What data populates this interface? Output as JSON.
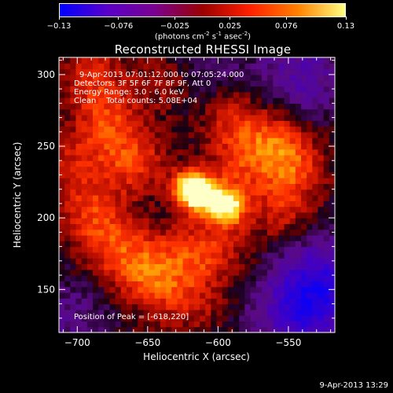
{
  "colorbar": {
    "ticks": [
      "-0.13",
      "-0.076",
      "-0.025",
      "0.025",
      "0.076",
      "0.13"
    ],
    "tick_values": [
      -0.13,
      -0.076,
      -0.025,
      0.025,
      0.076,
      0.13
    ],
    "units_base": "(photons cm",
    "units_exp1": "-2",
    "units_mid": " s",
    "units_exp2": "-1",
    "units_mid2": " asec",
    "units_exp3": "-2",
    "units_end": ")",
    "colors": [
      "#0000ff",
      "#5a00c8",
      "#7a0090",
      "#9a0000",
      "#ff2000",
      "#ff8000",
      "#ffff80"
    ]
  },
  "image_title": "Reconstructed RHESSI Image",
  "annotations": {
    "time_range": "9-Apr-2013 07:01:12.000 to 07:05:24.000",
    "detectors": "Detectors: 3F 5F 6F 7F 8F 9F, Att 0",
    "energy": "Energy Range: 3.0 - 6.0 keV",
    "clean": "Clean    Total counts: 5.08E+04",
    "peak": "Position of Peak = [-618,220]"
  },
  "footer_timestamp": "9-Apr-2013 13:29",
  "chart_data": {
    "type": "heatmap",
    "title": "Reconstructed RHESSI Image",
    "xlabel": "Heliocentric X (arcsec)",
    "ylabel": "Heliocentric Y (arcsec)",
    "xlim": [
      -713,
      -517
    ],
    "ylim": [
      120,
      312
    ],
    "x_ticks": [
      -700,
      -650,
      -600,
      -550
    ],
    "x_tick_labels": [
      "−700",
      "−650",
      "−600",
      "−550"
    ],
    "y_ticks": [
      150,
      200,
      250,
      300
    ],
    "y_tick_labels": [
      "150",
      "200",
      "250",
      "300"
    ],
    "value_range": [
      -0.13,
      0.13
    ],
    "peak": [
      -618,
      220
    ],
    "sources": [
      {
        "x": -620,
        "y": 221,
        "value": 0.13
      },
      {
        "x": -593,
        "y": 209,
        "value": 0.12
      },
      {
        "x": -610,
        "y": 215,
        "value": 0.09
      },
      {
        "x": -660,
        "y": 240,
        "value": 0.055
      },
      {
        "x": -678,
        "y": 268,
        "value": 0.05
      },
      {
        "x": -690,
        "y": 300,
        "value": 0.045
      },
      {
        "x": -635,
        "y": 295,
        "value": 0.035
      },
      {
        "x": -590,
        "y": 270,
        "value": 0.05
      },
      {
        "x": -560,
        "y": 252,
        "value": 0.06
      },
      {
        "x": -545,
        "y": 235,
        "value": 0.045
      },
      {
        "x": -555,
        "y": 205,
        "value": 0.04
      },
      {
        "x": -690,
        "y": 205,
        "value": 0.05
      },
      {
        "x": -675,
        "y": 180,
        "value": 0.045
      },
      {
        "x": -655,
        "y": 165,
        "value": 0.05
      },
      {
        "x": -625,
        "y": 172,
        "value": 0.045
      },
      {
        "x": -600,
        "y": 180,
        "value": 0.04
      },
      {
        "x": -640,
        "y": 148,
        "value": 0.03
      },
      {
        "x": -615,
        "y": 140,
        "value": 0.025
      },
      {
        "x": -585,
        "y": 235,
        "value": 0.04
      },
      {
        "x": -700,
        "y": 240,
        "value": 0.035
      }
    ],
    "negative_regions": [
      {
        "x": -540,
        "y": 300,
        "value": -0.05
      },
      {
        "x": -527,
        "y": 155,
        "value": -0.08
      },
      {
        "x": -545,
        "y": 130,
        "value": -0.06
      },
      {
        "x": -610,
        "y": 300,
        "value": -0.03
      },
      {
        "x": -705,
        "y": 130,
        "value": -0.03
      }
    ]
  }
}
